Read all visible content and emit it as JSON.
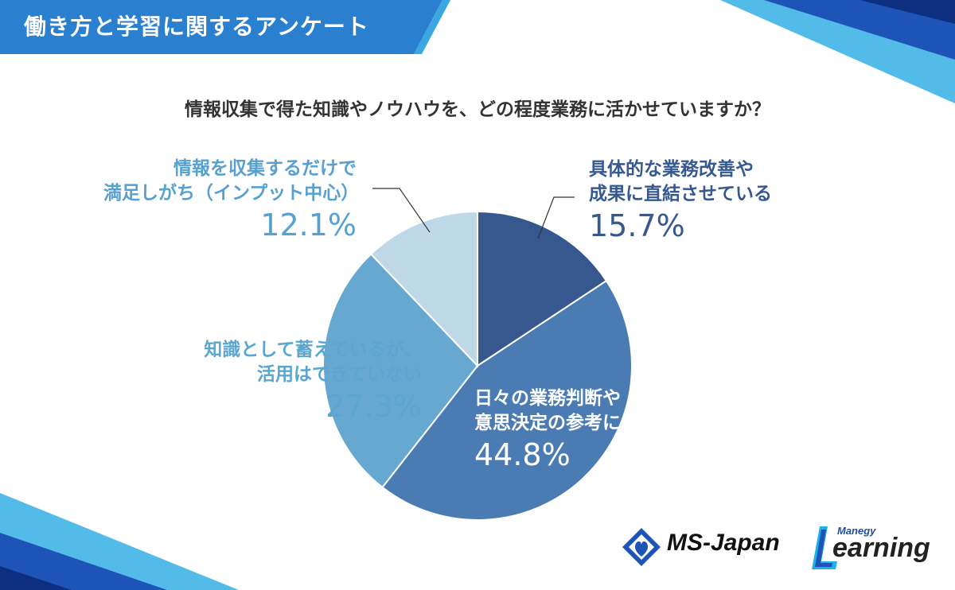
{
  "header": {
    "title": "働き方と学習に関するアンケート"
  },
  "question": "情報収集で得た知識やノウハウを、どの程度業務に活かせていますか？",
  "chart_data": {
    "type": "pie",
    "title": "",
    "slices": [
      {
        "label_lines": [
          "具体的な業務改善や",
          "成果に直結させている"
        ],
        "value": 15.7,
        "display": "15.7%",
        "color": "#37578f"
      },
      {
        "label_lines": [
          "日々の業務判断や",
          "意思決定の参考にしている"
        ],
        "value": 44.8,
        "display": "44.8%",
        "color": "#4b7bb3"
      },
      {
        "label_lines": [
          "知識として蓄えているが、",
          "活用はできていない"
        ],
        "value": 27.3,
        "display": "27.3%",
        "color": "#66a8cf"
      },
      {
        "label_lines": [
          "情報を収集するだけで",
          "満足しがち（インプット中心）"
        ],
        "value": 12.1,
        "display": "12.1%",
        "color": "#bfd8e8"
      }
    ]
  },
  "logos": {
    "ms_japan": "MS-Japan",
    "manegy_small": "Manegy",
    "manegy_big": "earning"
  },
  "colors": {
    "banner": "#2a7fce",
    "accent_dark": "#1e54b8",
    "accent_cyan": "#1fb0e8"
  }
}
